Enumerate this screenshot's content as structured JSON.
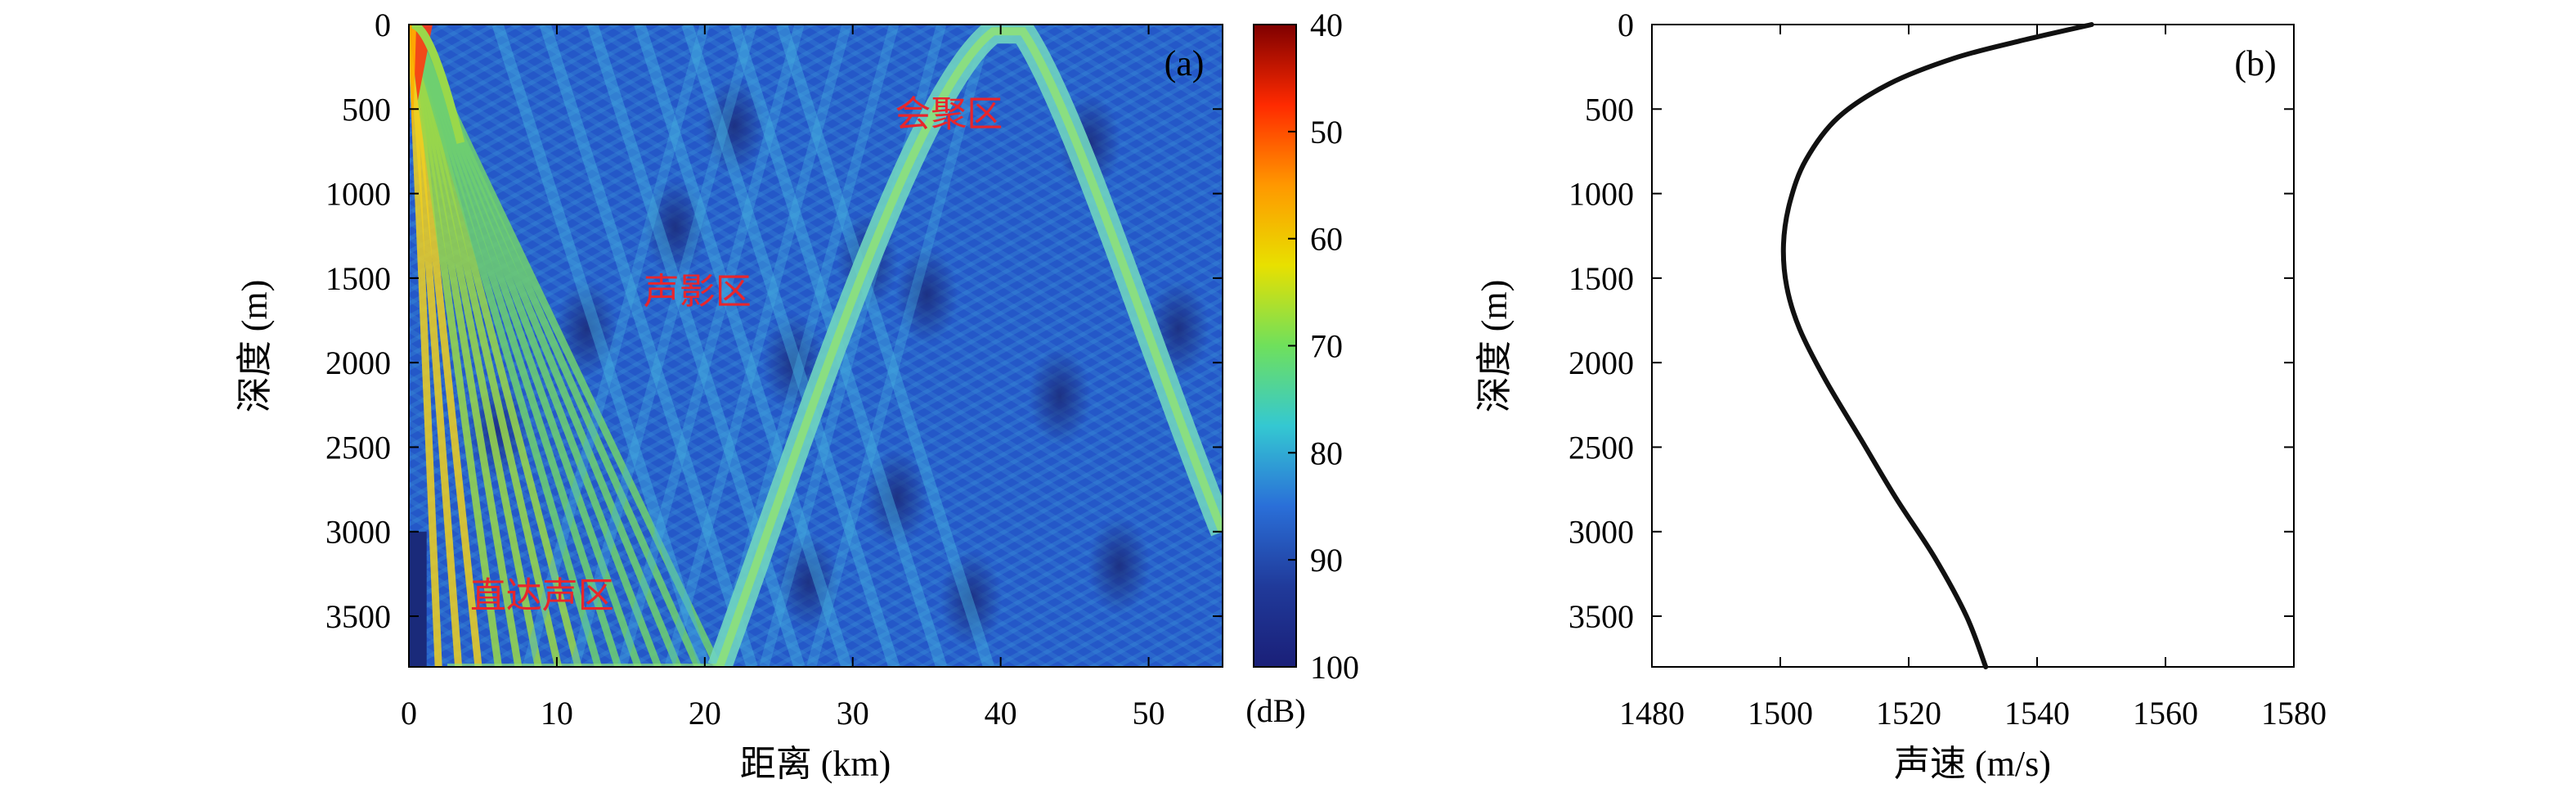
{
  "chart_data": [
    {
      "type": "heatmap",
      "panel_label": "(a)",
      "xlabel": "距离 (km)",
      "ylabel": "深度 (m)",
      "xlim": [
        0,
        55
      ],
      "ylim": [
        3800,
        0
      ],
      "x_ticks": [
        0,
        10,
        20,
        30,
        40,
        50
      ],
      "y_ticks": [
        0,
        500,
        1000,
        1500,
        2000,
        2500,
        3000,
        3500
      ],
      "colorbar": {
        "label": "(dB)",
        "range": [
          40,
          100
        ],
        "ticks": [
          40,
          50,
          60,
          70,
          80,
          90,
          100
        ],
        "reversed": true,
        "colormap": [
          "#7f0000",
          "#ff2a00",
          "#ff9800",
          "#e8e000",
          "#6fe05c",
          "#34c8d2",
          "#2a6fd8",
          "#203a9a",
          "#1a1f78"
        ]
      },
      "annotations": [
        {
          "text": "会聚区",
          "x": 36.5,
          "y": 600
        },
        {
          "text": "声影区",
          "x": 19.5,
          "y": 1650
        },
        {
          "text": "直达声区",
          "x": 9,
          "y": 3450
        }
      ],
      "features": {
        "direct_zone_boundary": [
          [
            0,
            0
          ],
          [
            2,
            3800
          ],
          [
            21,
            3800
          ],
          [
            0.3,
            0
          ]
        ],
        "convergence_arch": [
          [
            21,
            3800
          ],
          [
            29,
            2000
          ],
          [
            35,
            600
          ],
          [
            39.5,
            40
          ],
          [
            41.5,
            40
          ],
          [
            47,
            1300
          ],
          [
            55,
            3000
          ]
        ]
      }
    },
    {
      "type": "line",
      "panel_label": "(b)",
      "xlabel": "声速 (m/s)",
      "ylabel": "深度 (m)",
      "xlim": [
        1480,
        1580
      ],
      "ylim": [
        3800,
        0
      ],
      "x_ticks": [
        1480,
        1500,
        1520,
        1540,
        1560,
        1580
      ],
      "y_ticks": [
        0,
        500,
        1000,
        1500,
        2000,
        2500,
        3000,
        3500
      ],
      "series": [
        {
          "x": [
            1548.5,
            1537.0,
            1527.0,
            1517.0,
            1509.0,
            1504.0,
            1501.5,
            1500.5,
            1501.0,
            1503.0,
            1507.0,
            1512.5,
            1518.0,
            1524.0,
            1529.0,
            1532.0
          ],
          "y": [
            0,
            100,
            200,
            350,
            550,
            800,
            1050,
            1300,
            1550,
            1800,
            2100,
            2450,
            2800,
            3150,
            3500,
            3800
          ]
        }
      ]
    }
  ]
}
